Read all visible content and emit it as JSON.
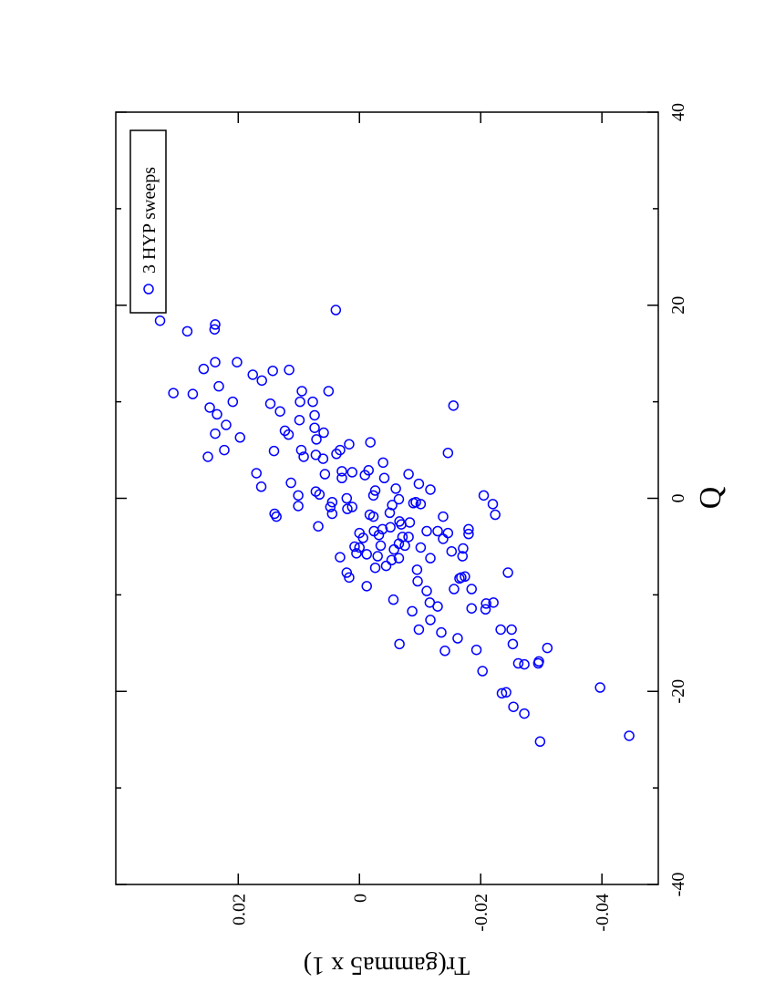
{
  "chart_data": {
    "type": "scatter",
    "xlabel": "Q",
    "ylabel": "Tr(gamma5 x 1)",
    "xlim": [
      -40,
      40
    ],
    "xticks": [
      -40,
      -20,
      0,
      20,
      40
    ],
    "xminorticks": [
      -30,
      -10,
      10,
      30
    ],
    "ylim": [
      -0.0493,
      0.0402
    ],
    "yticks": [
      -0.04,
      -0.02,
      0,
      0.02
    ],
    "legend": "upper right",
    "x": [
      18.4,
      17.3,
      18.0,
      19.5,
      10.9,
      10.8,
      13.4,
      14.1,
      11.6,
      14.1,
      12.8,
      13.2,
      13.3,
      12.2,
      10.0,
      9.4,
      8.7,
      7.6,
      6.7,
      9.8,
      11.1,
      10.0,
      11.1,
      4.3,
      5.0,
      6.3,
      2.6,
      1.2,
      4.9,
      1.6,
      6.6,
      9.0,
      8.1,
      8.6,
      6.1,
      6.8,
      5.0,
      4.5,
      4.6,
      2.5,
      0.7,
      0.3,
      -1.9,
      -0.8,
      -2.9,
      2.1,
      2.7,
      5.6,
      5.8,
      2.9,
      0.0,
      -1.1,
      -1.6,
      -0.4,
      -0.9,
      2.4,
      3.7,
      2.1,
      0.3,
      -1.9,
      0.8,
      -0.7,
      -0.1,
      2.5,
      -0.5,
      -0.6,
      1.5,
      0.9,
      4.7,
      9.6,
      0.3,
      -0.6,
      -1.7,
      -2.4,
      -3.0,
      -3.4,
      -3.6,
      -5.1,
      -5.7,
      -6.1,
      -7.7,
      -8.2,
      -5.8,
      -4.9,
      -6.0,
      -7.0,
      -4.7,
      -4.0,
      -2.5,
      -3.4,
      -3.4,
      -1.9,
      -3.6,
      -4.2,
      -5.5,
      -6.0,
      -3.7,
      -3.2,
      -8.2,
      -9.4,
      -6.2,
      -8.6,
      -7.4,
      -5.3,
      -4.0,
      -10.5,
      -11.7,
      -10.8,
      -13.6,
      -12.6,
      -13.9,
      -15.8,
      -14.5,
      -11.2,
      -9.4,
      -8.3,
      -11.4,
      -10.9,
      -7.7,
      -11.5,
      -15.7,
      -17.9,
      -13.6,
      -15.1,
      -13.6,
      -17.1,
      -17.2,
      -17.1,
      -15.5,
      -20.2,
      -20.1,
      -21.6,
      -22.3,
      -25.2,
      -19.6,
      -24.6,
      -15.1,
      -9.1,
      -7.2,
      -1.5,
      -4.1,
      -5.0,
      7.0,
      4.3,
      4.1,
      5.0,
      2.8,
      -1.7,
      1.0,
      -0.4,
      -6.2,
      -6.4,
      -5.2,
      -8.1,
      -5.1,
      -3.2,
      -3.8,
      -4.9,
      -9.6,
      -10.8,
      -16.9,
      -2.7,
      -0.9,
      0.4,
      17.5,
      -1.6,
      7.3,
      10.0
    ],
    "series": [
      {
        "name": "3 HYP sweeps",
        "color": "#0000ff",
        "values": [
          0.0329,
          0.0284,
          0.0238,
          0.0039,
          0.0307,
          0.0275,
          0.0257,
          0.0238,
          0.0232,
          0.0202,
          0.0176,
          0.0143,
          0.0116,
          0.0161,
          0.0209,
          0.0247,
          0.0235,
          0.022,
          0.0238,
          0.0147,
          0.0095,
          0.0077,
          0.0051,
          0.025,
          0.0223,
          0.0197,
          0.017,
          0.0162,
          0.0141,
          0.0113,
          0.0117,
          0.0131,
          0.0099,
          0.0074,
          0.0071,
          0.0059,
          0.0096,
          0.0072,
          0.0038,
          0.0057,
          0.0072,
          0.0101,
          0.0137,
          0.0101,
          0.0068,
          0.0029,
          0.0012,
          0.0017,
          -0.0018,
          -0.0015,
          0.0021,
          0.002,
          0.0045,
          0.0045,
          0.0012,
          -0.0009,
          -0.0039,
          -0.0041,
          -0.0023,
          -0.0023,
          -0.0026,
          -0.0054,
          -0.0065,
          -0.0081,
          -0.0089,
          -0.0101,
          -0.0098,
          -0.0117,
          -0.0146,
          -0.0155,
          -0.0205,
          -0.022,
          -0.0224,
          -0.0066,
          -0.0051,
          -0.0024,
          0.0,
          0.0,
          0.0005,
          0.0032,
          0.0021,
          0.0017,
          -0.0012,
          -0.0035,
          -0.003,
          -0.0044,
          -0.0065,
          -0.0081,
          -0.0083,
          -0.0111,
          -0.0129,
          -0.0138,
          -0.0146,
          -0.0138,
          -0.0152,
          -0.017,
          -0.018,
          -0.018,
          -0.0168,
          -0.0185,
          -0.0117,
          -0.0096,
          -0.0095,
          -0.0057,
          -0.0071,
          -0.0056,
          -0.0087,
          -0.0116,
          -0.0098,
          -0.0117,
          -0.0135,
          -0.0141,
          -0.0162,
          -0.0129,
          -0.0156,
          -0.0165,
          -0.0185,
          -0.0209,
          -0.0245,
          -0.0208,
          -0.0193,
          -0.0203,
          -0.0251,
          -0.0253,
          -0.0233,
          -0.0262,
          -0.0272,
          -0.0295,
          -0.031,
          -0.0235,
          -0.0242,
          -0.0254,
          -0.0272,
          -0.0298,
          -0.0397,
          -0.0445,
          -0.0066,
          -0.0012,
          -0.0026,
          -0.005,
          -0.0006,
          0.0008,
          0.0123,
          0.0092,
          0.006,
          0.0032,
          0.0029,
          -0.0017,
          -0.006,
          -0.0093,
          -0.0065,
          -0.0053,
          -0.0171,
          -0.0174,
          -0.0101,
          -0.0038,
          -0.0032,
          -0.0075,
          -0.0111,
          -0.0221,
          -0.0296,
          -0.0069,
          0.0048,
          0.0066,
          0.0239,
          0.014,
          0.0074,
          0.0098
        ]
      }
    ]
  }
}
